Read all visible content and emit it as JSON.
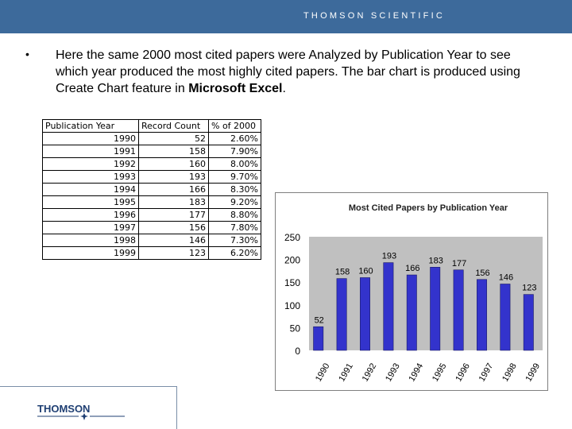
{
  "header": {
    "brand": "THOMSON SCIENTIFIC"
  },
  "slide": {
    "bullet": "•",
    "text_part1": "Here the same 2000 most cited papers were Analyzed by Publication Year to see which year produced the most highly cited papers. The bar chart is produced using Create Chart feature in ",
    "text_bold": "Microsoft Excel",
    "text_end": "."
  },
  "table": {
    "headers": [
      "Publication Year",
      "Record Count",
      "% of 2000"
    ],
    "rows": [
      [
        "1990",
        "52",
        "2.60%"
      ],
      [
        "1991",
        "158",
        "7.90%"
      ],
      [
        "1992",
        "160",
        "8.00%"
      ],
      [
        "1993",
        "193",
        "9.70%"
      ],
      [
        "1994",
        "166",
        "8.30%"
      ],
      [
        "1995",
        "183",
        "9.20%"
      ],
      [
        "1996",
        "177",
        "8.80%"
      ],
      [
        "1997",
        "156",
        "7.80%"
      ],
      [
        "1998",
        "146",
        "7.30%"
      ],
      [
        "1999",
        "123",
        "6.20%"
      ]
    ]
  },
  "chart_data": {
    "type": "bar",
    "title": "Most Cited Papers by Publication Year",
    "categories": [
      "1990",
      "1991",
      "1992",
      "1993",
      "1994",
      "1995",
      "1996",
      "1997",
      "1998",
      "1999"
    ],
    "values": [
      52,
      158,
      160,
      193,
      166,
      183,
      177,
      156,
      146,
      123
    ],
    "ylim": [
      0,
      250
    ],
    "yticks": [
      0,
      50,
      100,
      150,
      200,
      250
    ],
    "xlabel": "",
    "ylabel": "",
    "grid": false,
    "legend": "none",
    "colors": {
      "bar": "#3333cc",
      "plot_bg": "#c0c0c0",
      "label": "#000000"
    }
  },
  "footer": {
    "logo_text": "THOMSON",
    "logo_icon": "thomson-star-logo"
  },
  "colors": {
    "band": "#3d6a9b",
    "logo": "#1f3f73"
  }
}
